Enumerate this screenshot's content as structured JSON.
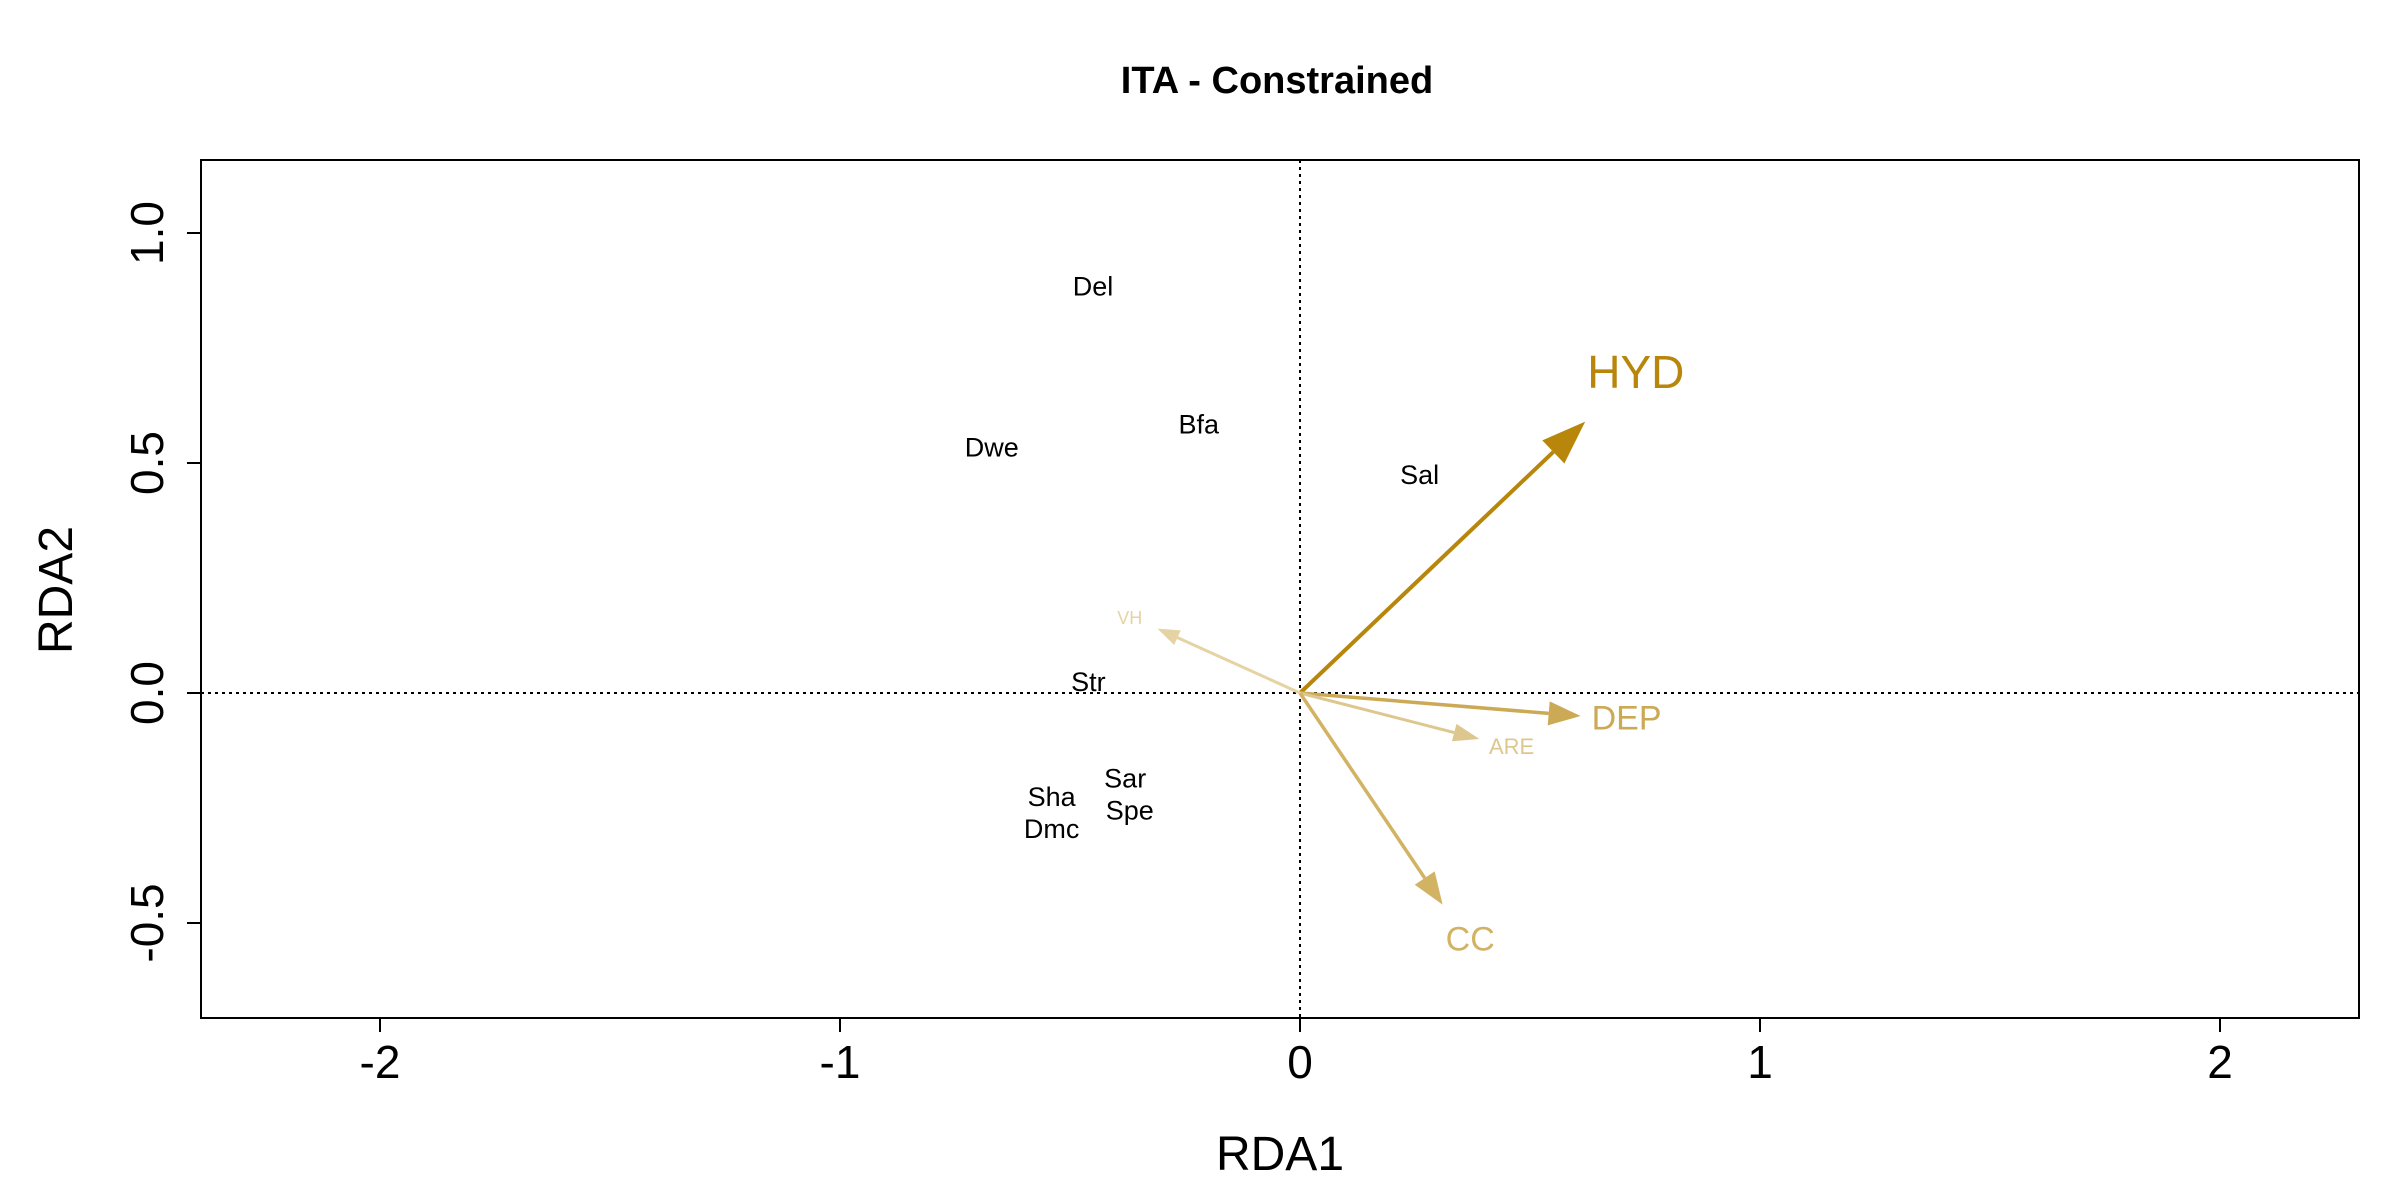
{
  "chart_data": {
    "type": "scatter",
    "title": "ITA - Constrained",
    "xlabel": "RDA1",
    "ylabel": "RDA2",
    "xlim": [
      -2.3,
      2.3
    ],
    "ylim": [
      -0.7,
      1.15
    ],
    "x_ticks": [
      -2,
      -1,
      0,
      1,
      2
    ],
    "y_ticks": [
      -0.5,
      0.0,
      0.5,
      1.0
    ],
    "x_tick_labels": [
      "-2",
      "-1",
      "0",
      "1",
      "2"
    ],
    "y_tick_labels": [
      "-0.5",
      "0.0",
      "0.5",
      "1.0"
    ],
    "reference_lines": {
      "x": 0,
      "y": 0,
      "style": "dotted"
    },
    "species": [
      {
        "label": "Del",
        "x": -0.45,
        "y": 0.88
      },
      {
        "label": "Bfa",
        "x": -0.22,
        "y": 0.58
      },
      {
        "label": "Dwe",
        "x": -0.67,
        "y": 0.53
      },
      {
        "label": "Sal",
        "x": 0.26,
        "y": 0.47
      },
      {
        "label": "Str",
        "x": -0.46,
        "y": 0.02
      },
      {
        "label": "Sar",
        "x": -0.38,
        "y": -0.19
      },
      {
        "label": "Sha",
        "x": -0.54,
        "y": -0.23
      },
      {
        "label": "Spe",
        "x": -0.37,
        "y": -0.26
      },
      {
        "label": "Dmc",
        "x": -0.54,
        "y": -0.3
      }
    ],
    "env_vectors": [
      {
        "label": "HYD",
        "x": 0.62,
        "y": 0.59,
        "label_x": 0.73,
        "label_y": 0.69,
        "color": "#B8860B",
        "size": "large"
      },
      {
        "label": "DEP",
        "x": 0.61,
        "y": -0.05,
        "label_x": 0.71,
        "label_y": -0.06,
        "color": "#CCAA55",
        "size": "medium"
      },
      {
        "label": "ARE",
        "x": 0.39,
        "y": -0.1,
        "label_x": 0.46,
        "label_y": -0.12,
        "color": "#DEC68F",
        "size": "small"
      },
      {
        "label": "CC",
        "x": 0.31,
        "y": -0.46,
        "label_x": 0.37,
        "label_y": -0.54,
        "color": "#D2B263",
        "size": "medium"
      },
      {
        "label": "VH",
        "x": -0.31,
        "y": 0.14,
        "label_x": -0.37,
        "label_y": 0.16,
        "color": "#E6D3A3",
        "size": "tiny"
      }
    ]
  }
}
